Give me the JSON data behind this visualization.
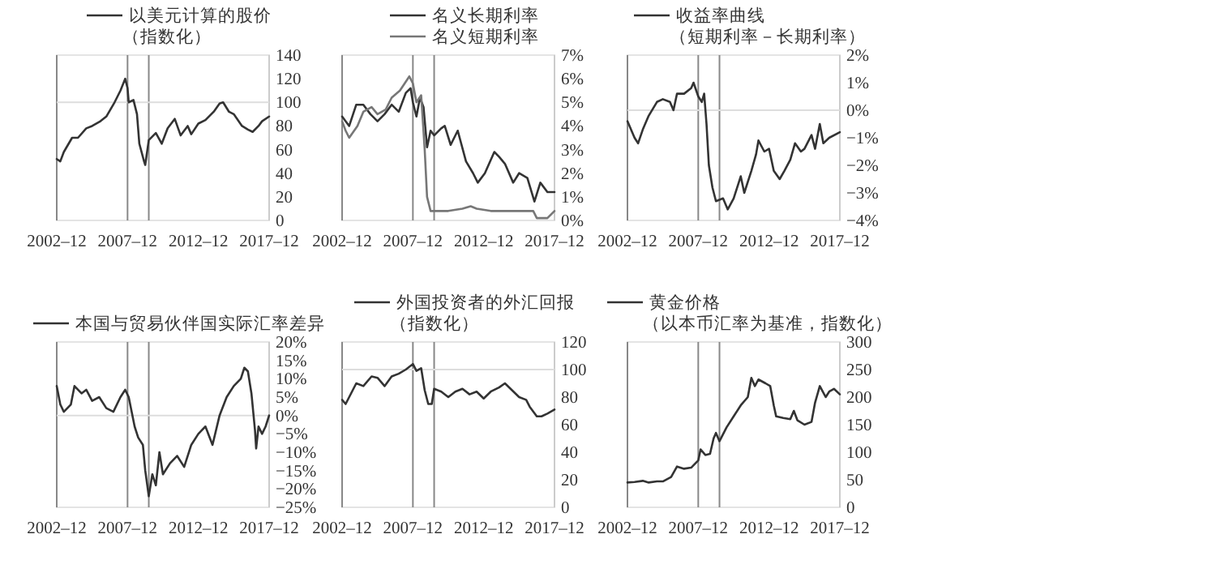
{
  "chart_data": [
    {
      "type": "line",
      "legend": "top",
      "xlim": [
        "2002-12",
        "2017-12"
      ],
      "xticks": [
        {
          "value": "2002-12",
          "label": "2002–12"
        },
        {
          "value": "2007-12",
          "label": "2007–12"
        },
        {
          "value": "2012-12",
          "label": "2012–12"
        },
        {
          "value": "2017-12",
          "label": "2017–12"
        }
      ],
      "ylim": [
        0,
        140
      ],
      "yticks": [
        0,
        20,
        40,
        60,
        80,
        100,
        120,
        140
      ],
      "ref_lines": [
        {
          "axis": "x",
          "value": "2007-12",
          "color": "#888888"
        },
        {
          "axis": "x",
          "value": "2009-06",
          "color": "#888888"
        },
        {
          "axis": "y",
          "value": 100,
          "color": "#dddddd"
        }
      ],
      "series": [
        {
          "name": "以美元计算的股价（指数化）",
          "color": "#333333",
          "x": [
            "2002-12",
            "2003-03",
            "2003-06",
            "2004-01",
            "2004-06",
            "2005-01",
            "2005-06",
            "2006-01",
            "2006-06",
            "2007-01",
            "2007-06",
            "2007-10",
            "2007-12",
            "2008-01",
            "2008-05",
            "2008-08",
            "2008-10",
            "2009-02",
            "2009-03",
            "2009-06",
            "2009-12",
            "2010-05",
            "2010-10",
            "2011-04",
            "2011-09",
            "2012-03",
            "2012-06",
            "2012-12",
            "2013-06",
            "2014-01",
            "2014-06",
            "2014-09",
            "2015-02",
            "2015-06",
            "2016-01",
            "2016-06",
            "2016-10",
            "2017-03",
            "2017-06",
            "2017-12"
          ],
          "values": [
            52,
            50,
            58,
            70,
            70,
            78,
            80,
            84,
            88,
            100,
            110,
            120,
            112,
            100,
            102,
            90,
            65,
            50,
            47,
            68,
            74,
            65,
            78,
            86,
            72,
            80,
            73,
            82,
            85,
            92,
            99,
            100,
            92,
            90,
            80,
            77,
            75,
            80,
            84,
            88
          ]
        }
      ]
    },
    {
      "type": "line",
      "legend": "top",
      "xlim": [
        "2002-12",
        "2017-12"
      ],
      "xticks": [
        {
          "value": "2002-12",
          "label": "2002–12"
        },
        {
          "value": "2007-12",
          "label": "2007–12"
        },
        {
          "value": "2012-12",
          "label": "2012–12"
        },
        {
          "value": "2017-12",
          "label": "2017–12"
        }
      ],
      "ylim": [
        0,
        7
      ],
      "yticks": [
        {
          "value": 0,
          "label": "0%"
        },
        {
          "value": 1,
          "label": "1%"
        },
        {
          "value": 2,
          "label": "2%"
        },
        {
          "value": 3,
          "label": "3%"
        },
        {
          "value": 4,
          "label": "4%"
        },
        {
          "value": 5,
          "label": "5%"
        },
        {
          "value": 6,
          "label": "6%"
        },
        {
          "value": 7,
          "label": "7%"
        }
      ],
      "ref_lines": [
        {
          "axis": "x",
          "value": "2007-12",
          "color": "#888888"
        },
        {
          "axis": "x",
          "value": "2009-06",
          "color": "#888888"
        }
      ],
      "series": [
        {
          "name": "名义长期利率",
          "color": "#333333",
          "x": [
            "2002-12",
            "2003-06",
            "2003-12",
            "2004-06",
            "2004-12",
            "2005-06",
            "2005-12",
            "2006-06",
            "2006-12",
            "2007-06",
            "2007-10",
            "2007-12",
            "2008-03",
            "2008-06",
            "2008-09",
            "2008-12",
            "2009-03",
            "2009-06",
            "2009-12",
            "2010-03",
            "2010-08",
            "2011-02",
            "2011-09",
            "2012-03",
            "2012-07",
            "2013-01",
            "2013-09",
            "2014-01",
            "2014-06",
            "2015-01",
            "2015-06",
            "2016-01",
            "2016-07",
            "2016-12",
            "2017-06",
            "2017-12"
          ],
          "values": [
            4.4,
            4.0,
            4.9,
            4.9,
            4.5,
            4.2,
            4.5,
            4.9,
            4.6,
            5.4,
            5.6,
            5.0,
            4.4,
            5.2,
            4.8,
            3.1,
            3.8,
            3.6,
            3.9,
            4.0,
            3.2,
            3.8,
            2.5,
            2.0,
            1.6,
            2.0,
            2.9,
            2.7,
            2.4,
            1.6,
            2.0,
            1.8,
            0.8,
            1.6,
            1.2,
            1.2
          ]
        },
        {
          "name": "名义短期利率",
          "color": "#777777",
          "x": [
            "2002-12",
            "2003-03",
            "2003-06",
            "2004-01",
            "2004-06",
            "2005-01",
            "2005-06",
            "2006-01",
            "2006-06",
            "2007-01",
            "2007-09",
            "2007-12",
            "2008-03",
            "2008-07",
            "2008-10",
            "2008-12",
            "2009-03",
            "2009-06",
            "2010-06",
            "2011-06",
            "2012-01",
            "2012-06",
            "2013-06",
            "2014-06",
            "2015-06",
            "2016-06",
            "2016-09",
            "2017-06",
            "2017-12"
          ],
          "values": [
            4.2,
            3.8,
            3.5,
            4.0,
            4.6,
            4.8,
            4.5,
            4.7,
            5.2,
            5.5,
            6.1,
            5.8,
            5.0,
            5.3,
            3.0,
            1.0,
            0.4,
            0.4,
            0.4,
            0.5,
            0.6,
            0.5,
            0.4,
            0.4,
            0.4,
            0.4,
            0.1,
            0.1,
            0.4
          ]
        }
      ]
    },
    {
      "type": "line",
      "legend": "top",
      "xlim": [
        "2002-12",
        "2017-12"
      ],
      "xticks": [
        {
          "value": "2002-12",
          "label": "2002–12"
        },
        {
          "value": "2007-12",
          "label": "2007–12"
        },
        {
          "value": "2012-12",
          "label": "2012–12"
        },
        {
          "value": "2017-12",
          "label": "2017–12"
        }
      ],
      "ylim": [
        -4,
        2
      ],
      "yticks": [
        {
          "value": -4,
          "label": "−4%"
        },
        {
          "value": -3,
          "label": "−3%"
        },
        {
          "value": -2,
          "label": "−2%"
        },
        {
          "value": -1,
          "label": "−1%"
        },
        {
          "value": 0,
          "label": "0%"
        },
        {
          "value": 1,
          "label": "1%"
        },
        {
          "value": 2,
          "label": "2%"
        }
      ],
      "ref_lines": [
        {
          "axis": "x",
          "value": "2007-12",
          "color": "#888888"
        },
        {
          "axis": "x",
          "value": "2009-06",
          "color": "#888888"
        },
        {
          "axis": "y",
          "value": 0,
          "color": "#dddddd"
        }
      ],
      "series": [
        {
          "name": "收益率曲线（短期利率－长期利率）",
          "color": "#333333",
          "x": [
            "2002-12",
            "2003-03",
            "2003-06",
            "2003-09",
            "2004-01",
            "2004-06",
            "2005-01",
            "2005-06",
            "2005-12",
            "2006-03",
            "2006-06",
            "2006-12",
            "2007-06",
            "2007-08",
            "2007-12",
            "2008-03",
            "2008-05",
            "2008-07",
            "2008-09",
            "2008-12",
            "2009-03",
            "2009-09",
            "2010-01",
            "2010-06",
            "2010-12",
            "2011-03",
            "2011-09",
            "2012-01",
            "2012-03",
            "2012-08",
            "2012-12",
            "2013-04",
            "2013-09",
            "2014-01",
            "2014-06",
            "2014-10",
            "2015-03",
            "2015-06",
            "2015-12",
            "2016-03",
            "2016-07",
            "2016-10",
            "2017-03",
            "2017-12"
          ],
          "values": [
            -0.4,
            -0.7,
            -1.0,
            -1.2,
            -0.7,
            -0.2,
            0.3,
            0.4,
            0.3,
            0.0,
            0.6,
            0.6,
            0.8,
            1.0,
            0.5,
            0.3,
            0.6,
            -0.5,
            -2.0,
            -2.8,
            -3.3,
            -3.2,
            -3.6,
            -3.2,
            -2.4,
            -3.0,
            -2.2,
            -1.6,
            -1.1,
            -1.5,
            -1.4,
            -2.2,
            -2.5,
            -2.2,
            -1.8,
            -1.2,
            -1.5,
            -1.4,
            -0.9,
            -1.4,
            -0.5,
            -1.2,
            -1.0,
            -0.8
          ]
        }
      ]
    },
    {
      "type": "line",
      "legend": "top",
      "xlim": [
        "2002-12",
        "2017-12"
      ],
      "xticks": [
        {
          "value": "2002-12",
          "label": "2002–12"
        },
        {
          "value": "2007-12",
          "label": "2007–12"
        },
        {
          "value": "2012-12",
          "label": "2012–12"
        },
        {
          "value": "2017-12",
          "label": "2017–12"
        }
      ],
      "ylim": [
        -25,
        20
      ],
      "yticks": [
        {
          "value": -25,
          "label": "−25%"
        },
        {
          "value": -20,
          "label": "−20%"
        },
        {
          "value": -15,
          "label": "−15%"
        },
        {
          "value": -10,
          "label": "−10%"
        },
        {
          "value": -5,
          "label": "−5%"
        },
        {
          "value": 0,
          "label": "0%"
        },
        {
          "value": 5,
          "label": "5%"
        },
        {
          "value": 10,
          "label": "10%"
        },
        {
          "value": 15,
          "label": "15%"
        },
        {
          "value": 20,
          "label": "20%"
        }
      ],
      "ref_lines": [
        {
          "axis": "x",
          "value": "2007-12",
          "color": "#888888"
        },
        {
          "axis": "x",
          "value": "2009-06",
          "color": "#888888"
        },
        {
          "axis": "y",
          "value": 0,
          "color": "#dddddd"
        }
      ],
      "series": [
        {
          "name": "本国与贸易伙伴国实际汇率差异",
          "color": "#333333",
          "x": [
            "2002-12",
            "2003-03",
            "2003-06",
            "2003-12",
            "2004-03",
            "2004-09",
            "2005-01",
            "2005-06",
            "2005-12",
            "2006-06",
            "2006-12",
            "2007-06",
            "2007-10",
            "2008-01",
            "2008-06",
            "2008-09",
            "2009-01",
            "2009-03",
            "2009-06",
            "2009-09",
            "2009-12",
            "2010-03",
            "2010-06",
            "2010-12",
            "2011-06",
            "2011-12",
            "2012-06",
            "2012-12",
            "2013-06",
            "2013-12",
            "2014-06",
            "2014-12",
            "2015-06",
            "2015-12",
            "2016-03",
            "2016-06",
            "2016-09",
            "2016-12",
            "2017-01",
            "2017-03",
            "2017-06",
            "2017-09",
            "2017-12"
          ],
          "values": [
            8,
            3,
            1,
            3,
            8,
            6,
            7,
            4,
            5,
            2,
            1,
            5,
            7,
            5,
            -3,
            -6,
            -8,
            -15,
            -22,
            -16,
            -19,
            -10,
            -16,
            -13,
            -11,
            -14,
            -8,
            -5,
            -3,
            -8,
            0,
            5,
            8,
            10,
            13,
            12,
            6,
            -4,
            -9,
            -3,
            -5,
            -3,
            0
          ]
        }
      ]
    },
    {
      "type": "line",
      "legend": "top",
      "xlim": [
        "2002-12",
        "2017-12"
      ],
      "xticks": [
        {
          "value": "2002-12",
          "label": "2002–12"
        },
        {
          "value": "2007-12",
          "label": "2007–12"
        },
        {
          "value": "2012-12",
          "label": "2012–12"
        },
        {
          "value": "2017-12",
          "label": "2017–12"
        }
      ],
      "ylim": [
        0,
        120
      ],
      "yticks": [
        0,
        20,
        40,
        60,
        80,
        100,
        120
      ],
      "ref_lines": [
        {
          "axis": "x",
          "value": "2007-12",
          "color": "#888888"
        },
        {
          "axis": "x",
          "value": "2009-06",
          "color": "#888888"
        },
        {
          "axis": "y",
          "value": 100,
          "color": "#dddddd"
        }
      ],
      "series": [
        {
          "name": "外国投资者的外汇回报（指数化）",
          "color": "#333333",
          "x": [
            "2002-12",
            "2003-03",
            "2003-06",
            "2003-12",
            "2004-06",
            "2005-01",
            "2005-06",
            "2005-12",
            "2006-06",
            "2006-12",
            "2007-06",
            "2007-12",
            "2008-03",
            "2008-07",
            "2008-10",
            "2009-01",
            "2009-04",
            "2009-06",
            "2009-12",
            "2010-06",
            "2010-12",
            "2011-06",
            "2011-12",
            "2012-06",
            "2012-12",
            "2013-06",
            "2014-01",
            "2014-06",
            "2014-12",
            "2015-06",
            "2015-12",
            "2016-03",
            "2016-09",
            "2017-01",
            "2017-06",
            "2017-12"
          ],
          "values": [
            78,
            75,
            80,
            90,
            88,
            95,
            94,
            88,
            95,
            97,
            100,
            104,
            99,
            101,
            85,
            75,
            75,
            86,
            84,
            80,
            84,
            86,
            82,
            84,
            79,
            84,
            87,
            90,
            85,
            80,
            78,
            73,
            66,
            66,
            68,
            71
          ]
        }
      ]
    },
    {
      "type": "line",
      "legend": "top",
      "xlim": [
        "2002-12",
        "2017-12"
      ],
      "xticks": [
        {
          "value": "2002-12",
          "label": "2002–12"
        },
        {
          "value": "2007-12",
          "label": "2007–12"
        },
        {
          "value": "2012-12",
          "label": "2012–12"
        },
        {
          "value": "2017-12",
          "label": "2017–12"
        }
      ],
      "ylim": [
        0,
        300
      ],
      "yticks": [
        0,
        50,
        100,
        150,
        200,
        250,
        300
      ],
      "ref_lines": [
        {
          "axis": "x",
          "value": "2007-12",
          "color": "#888888"
        },
        {
          "axis": "x",
          "value": "2009-06",
          "color": "#888888"
        }
      ],
      "series": [
        {
          "name": "黄金价格（以本币汇率为基准，指数化）",
          "color": "#333333",
          "x": [
            "2002-12",
            "2003-06",
            "2004-01",
            "2004-06",
            "2005-01",
            "2005-06",
            "2006-01",
            "2006-06",
            "2006-12",
            "2007-06",
            "2007-12",
            "2008-02",
            "2008-06",
            "2008-10",
            "2009-01",
            "2009-03",
            "2009-06",
            "2009-12",
            "2010-06",
            "2010-12",
            "2011-06",
            "2011-09",
            "2011-12",
            "2012-03",
            "2012-09",
            "2013-01",
            "2013-04",
            "2013-06",
            "2013-12",
            "2014-06",
            "2014-09",
            "2014-12",
            "2015-06",
            "2015-12",
            "2016-03",
            "2016-07",
            "2016-12",
            "2017-03",
            "2017-07",
            "2017-12"
          ],
          "values": [
            45,
            46,
            48,
            45,
            47,
            47,
            55,
            74,
            70,
            72,
            85,
            105,
            95,
            97,
            125,
            135,
            120,
            145,
            165,
            185,
            200,
            235,
            220,
            232,
            225,
            220,
            185,
            165,
            162,
            160,
            175,
            158,
            150,
            155,
            190,
            220,
            200,
            210,
            215,
            205
          ]
        }
      ]
    }
  ]
}
